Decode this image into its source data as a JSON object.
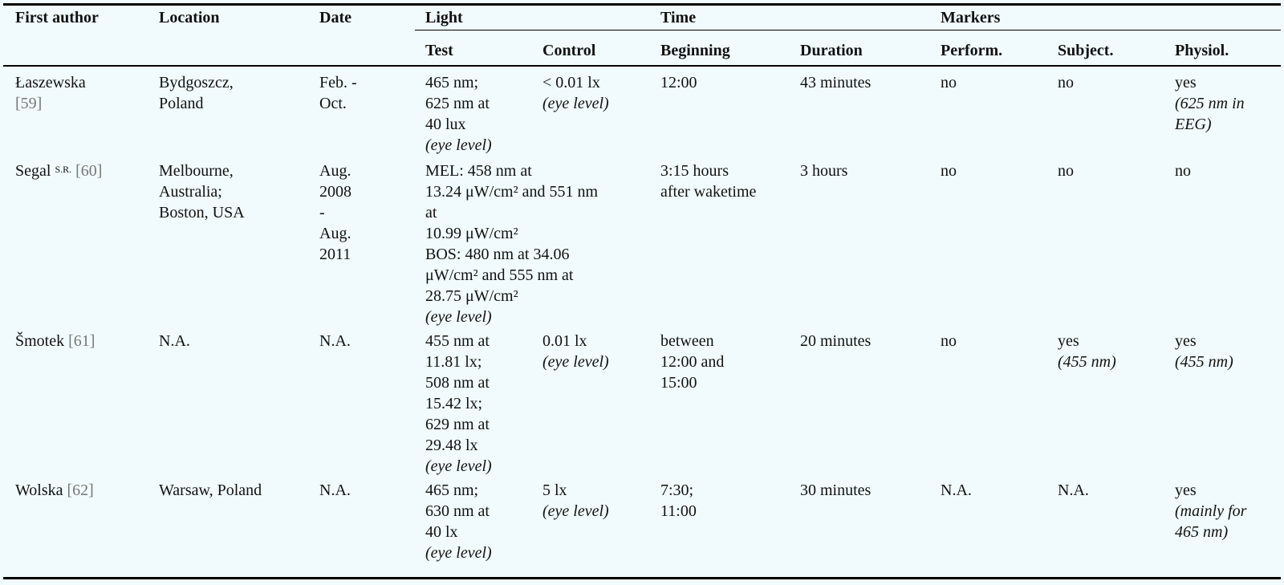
{
  "table": {
    "headers": {
      "first_author": "First author",
      "location": "Location",
      "date": "Date",
      "light": "Light",
      "time": "Time",
      "markers": "Markers",
      "test": "Test",
      "control": "Control",
      "beginning": "Beginning",
      "duration": "Duration",
      "perform": "Perform.",
      "subject": "Subject.",
      "physiol": "Physiol."
    },
    "rows": [
      {
        "author": "Łaszewska",
        "ref": "[59]",
        "location": [
          "Bydgoszcz,",
          "Poland"
        ],
        "date": [
          "Feb. -",
          "Oct."
        ],
        "test": [
          "465 nm;",
          "625 nm at",
          "40 lux"
        ],
        "test_note": "(eye level)",
        "control": [
          "< 0.01 lx"
        ],
        "control_note": "(eye level)",
        "beginning": [
          "12:00"
        ],
        "duration": "43 minutes",
        "perform": "no",
        "subject": "no",
        "subject_note": "",
        "physiol": "yes",
        "physiol_note": [
          "(625 nm in",
          "EEG)"
        ]
      },
      {
        "author": "Segal",
        "author_sup": "S.R.",
        "ref": "[60]",
        "location": [
          "Melbourne,",
          "Australia;",
          "Boston, USA"
        ],
        "date": [
          "Aug.",
          "2008",
          "-",
          "Aug.",
          "2011"
        ],
        "test": [
          "MEL: 458 nm at",
          "13.24 μW/cm² and 551 nm",
          "at",
          "10.99 μW/cm²",
          "BOS: 480 nm at 34.06",
          "μW/cm² and 555 nm at",
          "28.75 μW/cm²"
        ],
        "test_note": "(eye level)",
        "beginning": [
          "3:15 hours",
          "after waketime"
        ],
        "duration": "3 hours",
        "perform": "no",
        "subject": "no",
        "physiol": "no"
      },
      {
        "author": "Šmotek",
        "ref": "[61]",
        "location": [
          "N.A."
        ],
        "date": [
          "N.A."
        ],
        "test": [
          "455 nm at",
          "11.81 lx;",
          "508 nm at",
          "15.42 lx;",
          "629 nm at",
          "29.48 lx"
        ],
        "test_note": "(eye level)",
        "control": [
          "0.01 lx"
        ],
        "control_note": "(eye level)",
        "beginning": [
          "between",
          "12:00 and",
          "15:00"
        ],
        "duration": "20 minutes",
        "perform": "no",
        "subject": "yes",
        "subject_note": "(455 nm)",
        "physiol": "yes",
        "physiol_note": [
          "(455 nm)"
        ]
      },
      {
        "author": "Wolska",
        "ref": "[62]",
        "location": [
          "Warsaw, Poland"
        ],
        "date": [
          "N.A."
        ],
        "test": [
          "465 nm;",
          "630 nm at",
          "40 lx"
        ],
        "test_note": "(eye level)",
        "control": [
          "5 lx"
        ],
        "control_note": "(eye level)",
        "beginning": [
          "7:30;",
          "11:00"
        ],
        "duration": "30 minutes",
        "perform": "N.A.",
        "subject": "N.A.",
        "physiol": "yes",
        "physiol_note": [
          "(mainly for",
          "465 nm)"
        ]
      }
    ]
  }
}
